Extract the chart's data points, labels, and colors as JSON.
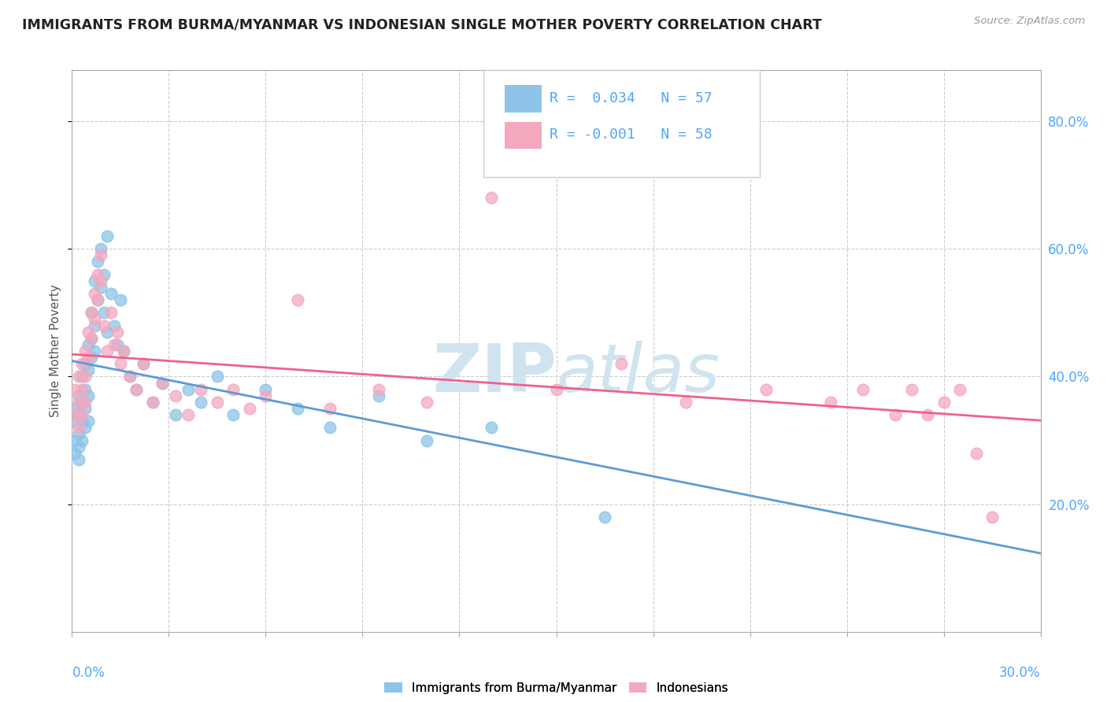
{
  "title": "IMMIGRANTS FROM BURMA/MYANMAR VS INDONESIAN SINGLE MOTHER POVERTY CORRELATION CHART",
  "source": "Source: ZipAtlas.com",
  "ylabel": "Single Mother Poverty",
  "ylabel_right_ticks": [
    "20.0%",
    "40.0%",
    "60.0%",
    "80.0%"
  ],
  "ylabel_right_values": [
    0.2,
    0.4,
    0.6,
    0.8
  ],
  "legend_r1": "R =  0.034",
  "legend_n1": "N = 57",
  "legend_r2": "R = -0.001",
  "legend_n2": "N = 58",
  "legend_label1": "Immigrants from Burma/Myanmar",
  "legend_label2": "Indonesians",
  "color_blue": "#8dc4e8",
  "color_pink": "#f4a8be",
  "color_blue_line": "#5b9bd5",
  "color_pink_line": "#f06090",
  "color_title": "#222222",
  "color_axis_label": "#4da6ff",
  "color_watermark": "#d0e4f0",
  "xlim": [
    0.0,
    0.3
  ],
  "ylim": [
    0.0,
    0.88
  ],
  "blue_scatter_x": [
    0.001,
    0.001,
    0.001,
    0.001,
    0.002,
    0.002,
    0.002,
    0.002,
    0.002,
    0.003,
    0.003,
    0.003,
    0.003,
    0.004,
    0.004,
    0.004,
    0.004,
    0.005,
    0.005,
    0.005,
    0.005,
    0.006,
    0.006,
    0.006,
    0.007,
    0.007,
    0.007,
    0.008,
    0.008,
    0.009,
    0.009,
    0.01,
    0.01,
    0.011,
    0.011,
    0.012,
    0.013,
    0.014,
    0.015,
    0.016,
    0.018,
    0.02,
    0.022,
    0.025,
    0.028,
    0.032,
    0.036,
    0.04,
    0.045,
    0.05,
    0.06,
    0.07,
    0.08,
    0.095,
    0.11,
    0.13,
    0.165
  ],
  "blue_scatter_y": [
    0.35,
    0.33,
    0.3,
    0.28,
    0.37,
    0.34,
    0.31,
    0.29,
    0.27,
    0.4,
    0.36,
    0.33,
    0.3,
    0.42,
    0.38,
    0.35,
    0.32,
    0.45,
    0.41,
    0.37,
    0.33,
    0.5,
    0.46,
    0.43,
    0.55,
    0.48,
    0.44,
    0.58,
    0.52,
    0.6,
    0.54,
    0.56,
    0.5,
    0.62,
    0.47,
    0.53,
    0.48,
    0.45,
    0.52,
    0.44,
    0.4,
    0.38,
    0.42,
    0.36,
    0.39,
    0.34,
    0.38,
    0.36,
    0.4,
    0.34,
    0.38,
    0.35,
    0.32,
    0.37,
    0.3,
    0.32,
    0.18
  ],
  "pink_scatter_x": [
    0.001,
    0.001,
    0.002,
    0.002,
    0.002,
    0.003,
    0.003,
    0.003,
    0.004,
    0.004,
    0.004,
    0.005,
    0.005,
    0.006,
    0.006,
    0.007,
    0.007,
    0.008,
    0.008,
    0.009,
    0.009,
    0.01,
    0.011,
    0.012,
    0.013,
    0.014,
    0.015,
    0.016,
    0.018,
    0.02,
    0.022,
    0.025,
    0.028,
    0.032,
    0.036,
    0.04,
    0.045,
    0.05,
    0.055,
    0.06,
    0.07,
    0.08,
    0.095,
    0.11,
    0.13,
    0.15,
    0.17,
    0.19,
    0.215,
    0.235,
    0.245,
    0.255,
    0.26,
    0.265,
    0.27,
    0.275,
    0.28,
    0.285
  ],
  "pink_scatter_y": [
    0.38,
    0.34,
    0.4,
    0.36,
    0.32,
    0.42,
    0.38,
    0.34,
    0.44,
    0.4,
    0.36,
    0.47,
    0.43,
    0.5,
    0.46,
    0.53,
    0.49,
    0.56,
    0.52,
    0.59,
    0.55,
    0.48,
    0.44,
    0.5,
    0.45,
    0.47,
    0.42,
    0.44,
    0.4,
    0.38,
    0.42,
    0.36,
    0.39,
    0.37,
    0.34,
    0.38,
    0.36,
    0.38,
    0.35,
    0.37,
    0.52,
    0.35,
    0.38,
    0.36,
    0.68,
    0.38,
    0.42,
    0.36,
    0.38,
    0.36,
    0.38,
    0.34,
    0.38,
    0.34,
    0.36,
    0.38,
    0.28,
    0.18
  ]
}
